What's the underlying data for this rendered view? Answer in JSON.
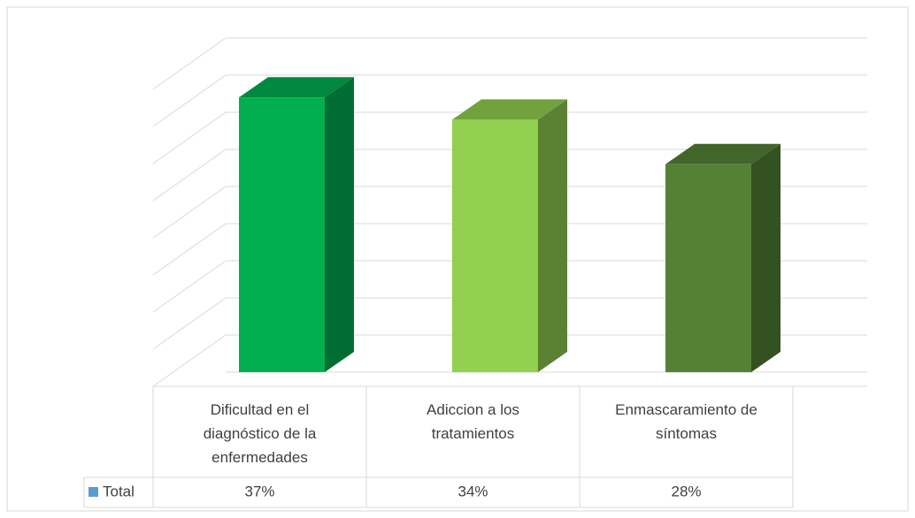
{
  "chart_data": {
    "type": "bar3d",
    "categories": [
      "Dificultad en el diagnóstico de la enfermedades",
      "Adiccion a los tratamientos",
      "Enmascaramiento de síntomas"
    ],
    "series": [
      {
        "name": "Total",
        "color": "#5b9bd5",
        "values": [
          37,
          34,
          28
        ],
        "value_labels": [
          "37%",
          "34%",
          "28%"
        ],
        "bar_colors": [
          "#00b050",
          "#92d050",
          "#548235"
        ]
      }
    ],
    "ylim": [
      0,
      45
    ],
    "yticks": [
      0,
      5,
      10,
      15,
      20,
      25,
      30,
      35,
      40,
      45
    ],
    "grid": true,
    "data_table": true
  }
}
